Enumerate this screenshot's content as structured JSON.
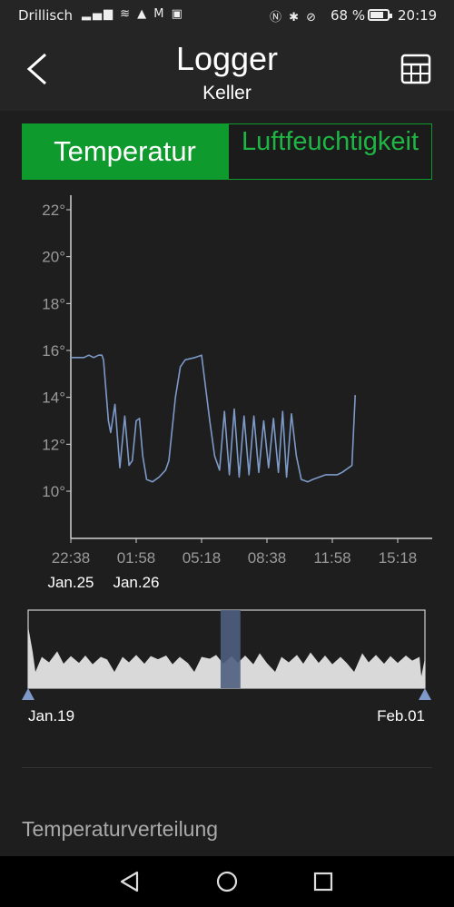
{
  "status_bar": {
    "carrier": "Drillisch",
    "left_icons": "▂▄▆ ≋ ▲ M ▣",
    "right_icons": "Ⓝ ✱ ⊘",
    "battery": "68 %",
    "time": "20:19"
  },
  "header": {
    "title": "Logger",
    "subtitle": "Keller",
    "back_icon": "chevron-left-icon",
    "table_icon": "table-grid-icon"
  },
  "tabs": {
    "temperature": "Temperatur",
    "humidity": "Luftfeuchtigkeit"
  },
  "colors": {
    "accent_green": "#0e9a2d",
    "series_line": "#7d9ac9",
    "overview_fill": "#d9d9d9",
    "selection": "#4e5e7e"
  },
  "chart_data": {
    "type": "line",
    "y_ticks": [
      "22°",
      "20°",
      "18°",
      "16°",
      "14°",
      "12°",
      "10°"
    ],
    "y_tick_values": [
      22,
      20,
      18,
      16,
      14,
      12,
      10
    ],
    "ylim": [
      8,
      23
    ],
    "x_ticks": [
      "22:38",
      "01:58",
      "05:18",
      "08:38",
      "11:58",
      "15:18"
    ],
    "x_tick_values": [
      0,
      200,
      400,
      600,
      800,
      1000
    ],
    "x_date_labels": [
      {
        "label": "Jan.25",
        "at": 0
      },
      {
        "label": "Jan.26",
        "at": 200
      }
    ],
    "xlim": [
      0,
      1050
    ],
    "series": [
      {
        "points": [
          [
            0,
            15.7
          ],
          [
            40,
            15.7
          ],
          [
            55,
            15.8
          ],
          [
            70,
            15.7
          ],
          [
            85,
            15.8
          ],
          [
            95,
            15.8
          ],
          [
            100,
            15.6
          ],
          [
            115,
            13.0
          ],
          [
            122,
            12.5
          ],
          [
            135,
            13.7
          ],
          [
            150,
            11.0
          ],
          [
            165,
            13.2
          ],
          [
            178,
            11.1
          ],
          [
            188,
            11.3
          ],
          [
            200,
            13.0
          ],
          [
            210,
            13.1
          ],
          [
            220,
            11.5
          ],
          [
            232,
            10.5
          ],
          [
            250,
            10.4
          ],
          [
            270,
            10.6
          ],
          [
            290,
            10.9
          ],
          [
            300,
            11.3
          ],
          [
            320,
            14.0
          ],
          [
            335,
            15.3
          ],
          [
            350,
            15.6
          ],
          [
            380,
            15.7
          ],
          [
            400,
            15.8
          ],
          [
            425,
            13.0
          ],
          [
            440,
            11.5
          ],
          [
            455,
            10.9
          ],
          [
            470,
            13.4
          ],
          [
            485,
            10.7
          ],
          [
            500,
            13.5
          ],
          [
            515,
            10.6
          ],
          [
            530,
            13.2
          ],
          [
            545,
            10.7
          ],
          [
            560,
            13.2
          ],
          [
            575,
            10.8
          ],
          [
            590,
            13.0
          ],
          [
            605,
            11.0
          ],
          [
            620,
            13.1
          ],
          [
            635,
            10.8
          ],
          [
            648,
            13.4
          ],
          [
            660,
            10.6
          ],
          [
            675,
            13.3
          ],
          [
            690,
            11.5
          ],
          [
            705,
            10.5
          ],
          [
            725,
            10.4
          ],
          [
            740,
            10.5
          ],
          [
            760,
            10.6
          ],
          [
            780,
            10.7
          ],
          [
            800,
            10.7
          ],
          [
            815,
            10.7
          ],
          [
            830,
            10.8
          ],
          [
            850,
            11.0
          ],
          [
            860,
            11.1
          ],
          [
            870,
            14.1
          ]
        ]
      }
    ],
    "overview": {
      "start_label": "Jan.19",
      "end_label": "Feb.01",
      "selection_start": 0.485,
      "selection_end": 0.535
    }
  },
  "section": {
    "title": "Temperaturverteilung"
  },
  "nav": {
    "back": "triangle-back-icon",
    "home": "circle-home-icon",
    "recents": "square-recents-icon"
  }
}
